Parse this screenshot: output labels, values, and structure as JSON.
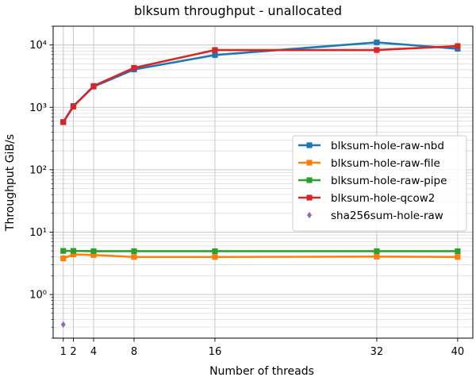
{
  "chart_data": {
    "type": "line",
    "title": "blksum throughput - unallocated",
    "xlabel": "Number of threads",
    "ylabel": "Throughput GiB/s",
    "x_scale": "linear",
    "y_scale": "log",
    "xlim": [
      0,
      41.5
    ],
    "ylim": [
      0.2,
      20000
    ],
    "x_ticks": [
      1,
      2,
      4,
      8,
      16,
      32,
      40
    ],
    "y_ticks": [
      {
        "value": 1,
        "label": "10⁰"
      },
      {
        "value": 10,
        "label": "10¹"
      },
      {
        "value": 100,
        "label": "10²"
      },
      {
        "value": 1000,
        "label": "10³"
      },
      {
        "value": 10000,
        "label": "10⁴"
      }
    ],
    "grid": "major-and-minor",
    "legend_position": "center-right",
    "series": [
      {
        "name": "blksum-hole-raw-nbd",
        "color": "#1f77b4",
        "marker": "square",
        "line": true,
        "points": [
          [
            1,
            580
          ],
          [
            2,
            1050
          ],
          [
            4,
            2150
          ],
          [
            8,
            4050
          ],
          [
            16,
            6900
          ],
          [
            32,
            11000
          ],
          [
            40,
            8700
          ]
        ]
      },
      {
        "name": "blksum-hole-raw-file",
        "color": "#ff7f0e",
        "marker": "square",
        "line": true,
        "points": [
          [
            1,
            3.8
          ],
          [
            2,
            4.4
          ],
          [
            4,
            4.3
          ],
          [
            8,
            4.0
          ],
          [
            16,
            4.0
          ],
          [
            32,
            4.05
          ],
          [
            40,
            4.0
          ]
        ]
      },
      {
        "name": "blksum-hole-raw-pipe",
        "color": "#2ca02c",
        "marker": "square",
        "line": true,
        "points": [
          [
            1,
            5.0
          ],
          [
            2,
            5.0
          ],
          [
            4,
            4.95
          ],
          [
            8,
            4.95
          ],
          [
            16,
            4.95
          ],
          [
            32,
            4.95
          ],
          [
            40,
            4.95
          ]
        ]
      },
      {
        "name": "blksum-hole-qcow2",
        "color": "#d62728",
        "marker": "square",
        "line": true,
        "points": [
          [
            1,
            580
          ],
          [
            2,
            1030
          ],
          [
            4,
            2200
          ],
          [
            8,
            4300
          ],
          [
            16,
            8300
          ],
          [
            32,
            8300
          ],
          [
            40,
            9600
          ]
        ]
      },
      {
        "name": "sha256sum-hole-raw",
        "color": "#9467bd",
        "marker": "diamond",
        "line": false,
        "points": [
          [
            1,
            0.33
          ]
        ]
      }
    ]
  }
}
